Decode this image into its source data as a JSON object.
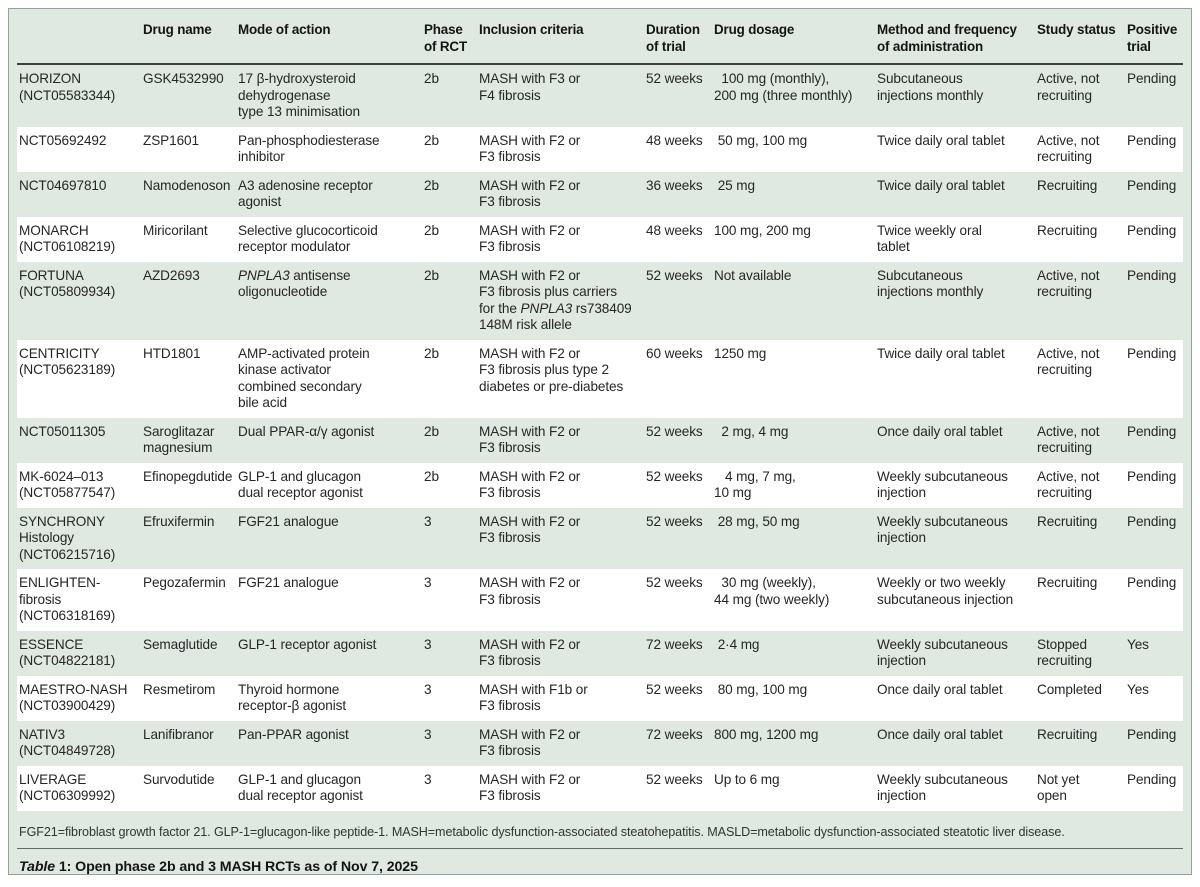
{
  "meta": {
    "italic_terms": [
      "PNPLA3"
    ]
  },
  "colors": {
    "panel_background": "#dfe8e1",
    "alt_row_background": "#ffffff",
    "outer_border": "#94a29a",
    "header_rule": "#3d3d3d",
    "caption_rule": "#606b64",
    "text": "#262626"
  },
  "table": {
    "columns": [
      {
        "key": "trial",
        "label": ""
      },
      {
        "key": "drug_name",
        "label": "Drug name"
      },
      {
        "key": "mode_of_action",
        "label": "Mode of action"
      },
      {
        "key": "phase",
        "label": "Phase\nof RCT"
      },
      {
        "key": "inclusion",
        "label": "Inclusion criteria"
      },
      {
        "key": "duration",
        "label": "Duration\nof trial"
      },
      {
        "key": "dosage",
        "label": "Drug dosage"
      },
      {
        "key": "method",
        "label": "Method and frequency\nof administration"
      },
      {
        "key": "status",
        "label": "Study status"
      },
      {
        "key": "positive",
        "label": "Positive\ntrial"
      }
    ],
    "rows": [
      {
        "trial": "HORIZON\n(NCT05583344)",
        "drug_name": "GSK4532990",
        "mode_of_action": "17 β-hydroxysteroid\ndehydrogenase\ntype 13 minimisation",
        "phase": "2b",
        "inclusion": "MASH with F3 or\nF4 fibrosis",
        "duration": "52 weeks",
        "dosage": "  100 mg (monthly),\n200 mg (three monthly)",
        "method": "Subcutaneous\ninjections monthly",
        "status": "Active, not\nrecruiting",
        "positive": "Pending"
      },
      {
        "trial": "NCT05692492",
        "drug_name": "ZSP1601",
        "mode_of_action": "Pan-phosphodiesterase\ninhibitor",
        "phase": "2b",
        "inclusion": "MASH with F2 or\nF3 fibrosis",
        "duration": "48 weeks",
        "dosage": " 50 mg, 100 mg",
        "method": "Twice daily oral tablet",
        "status": "Active, not\nrecruiting",
        "positive": "Pending"
      },
      {
        "trial": "NCT04697810",
        "drug_name": "Namodenoson",
        "mode_of_action": "A3 adenosine receptor\nagonist",
        "phase": "2b",
        "inclusion": "MASH with F2 or\nF3 fibrosis",
        "duration": "36 weeks",
        "dosage": " 25 mg",
        "method": "Twice daily oral tablet",
        "status": "Recruiting",
        "positive": "Pending"
      },
      {
        "trial": "MONARCH\n(NCT06108219)",
        "drug_name": "Miricorilant",
        "mode_of_action": "Selective glucocorticoid\nreceptor modulator",
        "phase": "2b",
        "inclusion": "MASH with F2 or\nF3 fibrosis",
        "duration": "48 weeks",
        "dosage": "100 mg, 200 mg",
        "method": "Twice weekly oral\ntablet",
        "status": "Recruiting",
        "positive": "Pending"
      },
      {
        "trial": "FORTUNA\n(NCT05809934)",
        "drug_name": "AZD2693",
        "mode_of_action": "PNPLA3 antisense\noligonucleotide",
        "phase": "2b",
        "inclusion": "MASH with F2 or\nF3 fibrosis plus carriers\nfor the PNPLA3 rs738409\n148M risk allele",
        "duration": "52 weeks",
        "dosage": "Not available",
        "method": "Subcutaneous\ninjections monthly",
        "status": "Active, not\nrecruiting",
        "positive": "Pending"
      },
      {
        "trial": "CENTRICITY\n(NCT05623189)",
        "drug_name": "HTD1801",
        "mode_of_action": "AMP-activated protein\nkinase activator\ncombined  secondary\nbile acid",
        "phase": "2b",
        "inclusion": "MASH with F2 or\nF3 fibrosis plus type 2\ndiabetes or pre-diabetes",
        "duration": "60 weeks",
        "dosage": "1250 mg",
        "method": "Twice daily oral tablet",
        "status": "Active, not\nrecruiting",
        "positive": "Pending"
      },
      {
        "trial": "NCT05011305",
        "drug_name": "Saroglitazar\nmagnesium",
        "mode_of_action": "Dual PPAR-α/γ agonist",
        "phase": "2b",
        "inclusion": "MASH with F2 or\nF3 fibrosis",
        "duration": "52 weeks",
        "dosage": "  2 mg, 4 mg",
        "method": "Once daily oral tablet",
        "status": "Active, not\nrecruiting",
        "positive": "Pending"
      },
      {
        "trial": "MK-6024–013\n(NCT05877547)",
        "drug_name": "Efinopegdutide",
        "mode_of_action": "GLP-1 and glucagon\ndual receptor agonist",
        "phase": "2b",
        "inclusion": "MASH with F2 or\nF3 fibrosis",
        "duration": "52 weeks",
        "dosage": "   4 mg, 7 mg,\n10 mg",
        "method": "Weekly subcutaneous\ninjection",
        "status": "Active, not\nrecruiting",
        "positive": "Pending"
      },
      {
        "trial": "SYNCHRONY\nHistology\n(NCT06215716)",
        "drug_name": "Efruxifermin",
        "mode_of_action": "FGF21 analogue",
        "phase": "3",
        "inclusion": "MASH with F2 or\nF3 fibrosis",
        "duration": "52 weeks",
        "dosage": " 28 mg, 50 mg",
        "method": "Weekly subcutaneous\ninjection",
        "status": "Recruiting",
        "positive": "Pending"
      },
      {
        "trial": "ENLIGHTEN-fibrosis\n(NCT06318169)",
        "drug_name": "Pegozafermin",
        "mode_of_action": "FGF21 analogue",
        "phase": "3",
        "inclusion": "MASH with F2 or\nF3 fibrosis",
        "duration": "52 weeks",
        "dosage": "  30 mg (weekly),\n44 mg (two weekly)",
        "method": "Weekly or two weekly\nsubcutaneous injection",
        "status": "Recruiting",
        "positive": "Pending"
      },
      {
        "trial": "ESSENCE\n(NCT04822181)",
        "drug_name": "Semaglutide",
        "mode_of_action": "GLP-1 receptor agonist",
        "phase": "3",
        "inclusion": "MASH with F2 or\nF3 fibrosis",
        "duration": "72 weeks",
        "dosage": " 2·4 mg",
        "method": "Weekly subcutaneous\ninjection",
        "status": "Stopped\nrecruiting",
        "positive": "Yes"
      },
      {
        "trial": "MAESTRO-NASH\n(NCT03900429)",
        "drug_name": "Resmetirom",
        "mode_of_action": "Thyroid hormone\nreceptor-β agonist",
        "phase": "3",
        "inclusion": "MASH with F1b or\nF3 fibrosis",
        "duration": "52 weeks",
        "dosage": " 80 mg, 100 mg",
        "method": "Once daily oral tablet",
        "status": "Completed",
        "positive": "Yes"
      },
      {
        "trial": "NATIV3\n(NCT04849728)",
        "drug_name": "Lanifibranor",
        "mode_of_action": "Pan-PPAR agonist",
        "phase": "3",
        "inclusion": "MASH with F2 or\nF3 fibrosis",
        "duration": "72 weeks",
        "dosage": "800 mg, 1200 mg",
        "method": "Once daily oral tablet",
        "status": "Recruiting",
        "positive": "Pending"
      },
      {
        "trial": "LIVERAGE\n(NCT06309992)",
        "drug_name": "Survodutide",
        "mode_of_action": "GLP-1 and  glucagon\ndual receptor agonist",
        "phase": "3",
        "inclusion": "MASH with F2 or\nF3 fibrosis",
        "duration": "52 weeks",
        "dosage": "Up to 6 mg",
        "method": "Weekly subcutaneous\ninjection",
        "status": "Not yet\nopen",
        "positive": "Pending"
      }
    ],
    "footnote": "FGF21=fibroblast growth factor 21. GLP-1=glucagon-like peptide-1. MASH=metabolic dysfunction-associated steatohepatitis. MASLD=metabolic dysfunction-associated steatotic liver disease."
  },
  "caption": {
    "table_word": "Table",
    "text": "1: Open phase 2b and 3 MASH RCTs as of Nov 7, 2025"
  }
}
